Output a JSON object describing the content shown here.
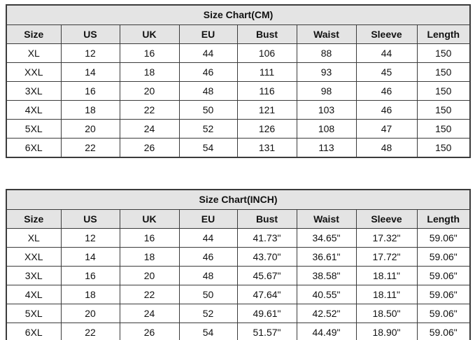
{
  "chart_data": [
    {
      "type": "table",
      "title": "Size Chart(CM)",
      "columns": [
        "Size",
        "US",
        "UK",
        "EU",
        "Bust",
        "Waist",
        "Sleeve",
        "Length"
      ],
      "rows": [
        [
          "XL",
          "12",
          "16",
          "44",
          "106",
          "88",
          "44",
          "150"
        ],
        [
          "XXL",
          "14",
          "18",
          "46",
          "111",
          "93",
          "45",
          "150"
        ],
        [
          "3XL",
          "16",
          "20",
          "48",
          "116",
          "98",
          "46",
          "150"
        ],
        [
          "4XL",
          "18",
          "22",
          "50",
          "121",
          "103",
          "46",
          "150"
        ],
        [
          "5XL",
          "20",
          "24",
          "52",
          "126",
          "108",
          "47",
          "150"
        ],
        [
          "6XL",
          "22",
          "26",
          "54",
          "131",
          "113",
          "48",
          "150"
        ]
      ]
    },
    {
      "type": "table",
      "title": "Size Chart(INCH)",
      "columns": [
        "Size",
        "US",
        "UK",
        "EU",
        "Bust",
        "Waist",
        "Sleeve",
        "Length"
      ],
      "rows": [
        [
          "XL",
          "12",
          "16",
          "44",
          "41.73\"",
          "34.65\"",
          "17.32\"",
          "59.06\""
        ],
        [
          "XXL",
          "14",
          "18",
          "46",
          "43.70\"",
          "36.61\"",
          "17.72\"",
          "59.06\""
        ],
        [
          "3XL",
          "16",
          "20",
          "48",
          "45.67\"",
          "38.58\"",
          "18.11\"",
          "59.06\""
        ],
        [
          "4XL",
          "18",
          "22",
          "50",
          "47.64\"",
          "40.55\"",
          "18.11\"",
          "59.06\""
        ],
        [
          "5XL",
          "20",
          "24",
          "52",
          "49.61\"",
          "42.52\"",
          "18.50\"",
          "59.06\""
        ],
        [
          "6XL",
          "22",
          "26",
          "54",
          "51.57\"",
          "44.49\"",
          "18.90\"",
          "59.06\""
        ]
      ]
    }
  ],
  "colors": {
    "header_bg": "#e4e4e4",
    "border": "#3b3b3b",
    "cell_bg": "#ffffff",
    "text": "#111111"
  }
}
